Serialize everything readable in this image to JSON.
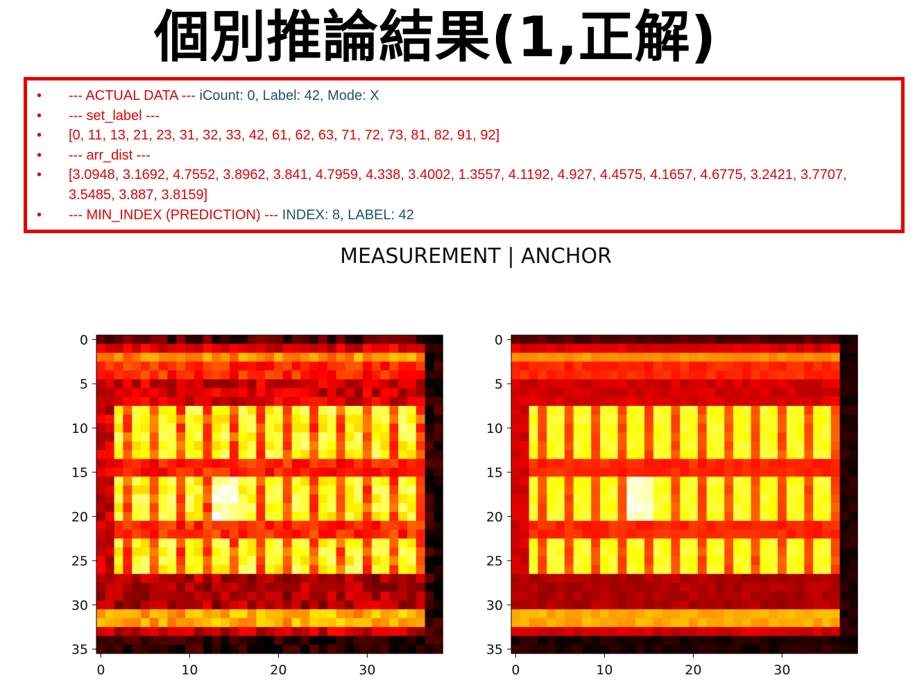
{
  "title": "個別推論結果(1,正解)",
  "log": {
    "line1_red": "--- ACTUAL DATA --- ",
    "line1_blue": "iCount: 0, Label: 42, Mode: X",
    "line2": "--- set_label ---",
    "line3": "[0, 11, 13, 21, 23, 31, 32, 33, 42, 61, 62, 63, 71, 72, 73, 81, 82, 91, 92]",
    "line4": "--- arr_dist ---",
    "line5": "[3.0948, 3.1692, 4.7552, 3.8962, 3.841, 4.7959, 4.338, 3.4002, 1.3557, 4.1192, 4.927, 4.4575, 4.1657, 4.6775, 3.2421, 3.7707, 3.5485, 3.887, 3.8159]",
    "line6_red": "--- MIN_INDEX (PREDICTION) --- ",
    "line6_blue": "INDEX: 8, LABEL: 42",
    "bullet": "•"
  },
  "chart_data": {
    "type": "heatmap",
    "title": "MEASUREMENT  |  ANCHOR",
    "colormap": "hot",
    "panels": [
      {
        "name": "MEASUREMENT",
        "xticks": [
          0,
          10,
          20,
          30
        ],
        "yticks": [
          0,
          5,
          10,
          15,
          20,
          25,
          30,
          35
        ],
        "xlim": [
          -0.5,
          38.5
        ],
        "ylim": [
          35.5,
          -0.5
        ]
      },
      {
        "name": "ANCHOR",
        "xticks": [
          0,
          10,
          20,
          30
        ],
        "yticks": [
          0,
          5,
          10,
          15,
          20,
          25,
          30,
          35
        ],
        "xlim": [
          -0.5,
          38.5
        ],
        "ylim": [
          35.5,
          -0.5
        ]
      }
    ]
  }
}
